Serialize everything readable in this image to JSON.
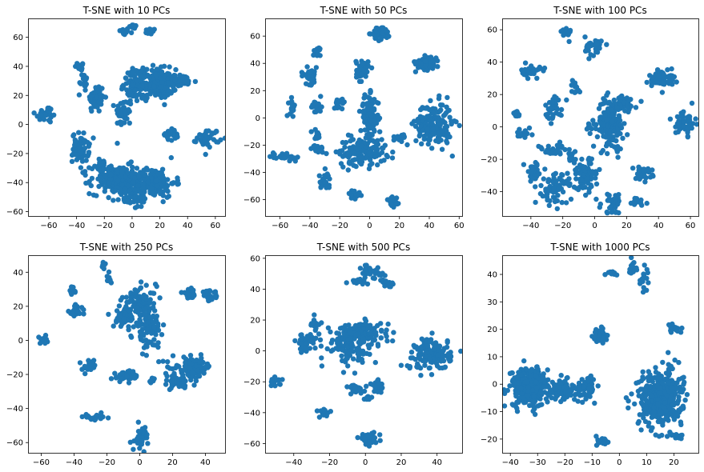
{
  "figure": {
    "background": "#ffffff"
  },
  "chart_data": [
    {
      "type": "scatter",
      "title": "T-SNE with 10 PCs",
      "xlim": [
        -75,
        67
      ],
      "ylim": [
        -63,
        73
      ],
      "xticks": [
        -60,
        -40,
        -20,
        0,
        20,
        40,
        60
      ],
      "yticks": [
        -60,
        -40,
        -20,
        0,
        20,
        40,
        60
      ],
      "color": "#1f77b4",
      "clusters": [
        {
          "cx": -6,
          "cy": 64,
          "sx": 2,
          "sy": 1.2,
          "n": 20
        },
        {
          "cx": 1,
          "cy": 67,
          "sx": 1.5,
          "sy": 1,
          "n": 12
        },
        {
          "cx": 13,
          "cy": 64,
          "sx": 2,
          "sy": 1,
          "n": 14
        },
        {
          "cx": -37,
          "cy": 40,
          "sx": 2,
          "sy": 1.5,
          "n": 18
        },
        {
          "cx": -35,
          "cy": 30,
          "sx": 1.5,
          "sy": 3,
          "n": 14
        },
        {
          "cx": -26,
          "cy": 18,
          "sx": 3,
          "sy": 5,
          "n": 55
        },
        {
          "cx": -62,
          "cy": 7,
          "sx": 4,
          "sy": 3,
          "n": 30
        },
        {
          "cx": -6,
          "cy": 8,
          "sx": 3,
          "sy": 5,
          "n": 40
        },
        {
          "cx": 16,
          "cy": 28,
          "sx": 8,
          "sy": 5,
          "n": 200
        },
        {
          "cx": 2,
          "cy": 28,
          "sx": 4,
          "sy": 5,
          "n": 60
        },
        {
          "cx": 35,
          "cy": 30,
          "sx": 6,
          "sy": 2,
          "n": 40
        },
        {
          "cx": -37,
          "cy": -16,
          "sx": 3,
          "sy": 5,
          "n": 70
        },
        {
          "cx": 28,
          "cy": -7,
          "sx": 3,
          "sy": 2,
          "n": 25
        },
        {
          "cx": 55,
          "cy": -9,
          "sx": 4,
          "sy": 3,
          "n": 40
        },
        {
          "cx": -10,
          "cy": -38,
          "sx": 10,
          "sy": 5,
          "n": 200
        },
        {
          "cx": 15,
          "cy": -40,
          "sx": 8,
          "sy": 5,
          "n": 150
        },
        {
          "cx": 0,
          "cy": -50,
          "sx": 6,
          "sy": 4,
          "n": 60
        },
        {
          "cx": -22,
          "cy": -28,
          "sx": 3,
          "sy": 2,
          "n": 20
        }
      ]
    },
    {
      "type": "scatter",
      "title": "T-SNE with 50 PCs",
      "xlim": [
        -70,
        62
      ],
      "ylim": [
        -72,
        73
      ],
      "xticks": [
        -60,
        -40,
        -20,
        0,
        20,
        40,
        60
      ],
      "yticks": [
        -60,
        -40,
        -20,
        0,
        20,
        40,
        60
      ],
      "color": "#1f77b4",
      "clusters": [
        {
          "cx": 8,
          "cy": 62,
          "sx": 3,
          "sy": 2.5,
          "n": 45
        },
        {
          "cx": -35,
          "cy": 48,
          "sx": 1.5,
          "sy": 2,
          "n": 15
        },
        {
          "cx": 39,
          "cy": 41,
          "sx": 4,
          "sy": 3,
          "n": 50
        },
        {
          "cx": -40,
          "cy": 31,
          "sx": 3,
          "sy": 3,
          "n": 35
        },
        {
          "cx": -5,
          "cy": 35,
          "sx": 2,
          "sy": 4,
          "n": 45
        },
        {
          "cx": -52,
          "cy": 8,
          "sx": 1,
          "sy": 3,
          "n": 15
        },
        {
          "cx": -35,
          "cy": 8,
          "sx": 2,
          "sy": 3,
          "n": 20
        },
        {
          "cx": -20,
          "cy": 12,
          "sx": 2,
          "sy": 2,
          "n": 15
        },
        {
          "cx": 0,
          "cy": 0,
          "sx": 3,
          "sy": 8,
          "n": 100
        },
        {
          "cx": 43,
          "cy": -5,
          "sx": 6,
          "sy": 8,
          "n": 180
        },
        {
          "cx": -5,
          "cy": -25,
          "sx": 8,
          "sy": 5,
          "n": 140
        },
        {
          "cx": -57,
          "cy": -28,
          "sx": 5,
          "sy": 1.5,
          "n": 30
        },
        {
          "cx": -35,
          "cy": -23,
          "sx": 2,
          "sy": 1.5,
          "n": 15
        },
        {
          "cx": -36,
          "cy": -12,
          "sx": 1.5,
          "sy": 2,
          "n": 12
        },
        {
          "cx": -30,
          "cy": -46,
          "sx": 2,
          "sy": 3,
          "n": 25
        },
        {
          "cx": -10,
          "cy": -56,
          "sx": 2,
          "sy": 1.5,
          "n": 15
        },
        {
          "cx": 16,
          "cy": -62,
          "sx": 2,
          "sy": 3,
          "n": 25
        },
        {
          "cx": 20,
          "cy": -15,
          "sx": 3,
          "sy": 2,
          "n": 15
        }
      ]
    },
    {
      "type": "scatter",
      "title": "T-SNE with 100 PCs",
      "xlim": [
        -58,
        65
      ],
      "ylim": [
        -55,
        67
      ],
      "xticks": [
        -60,
        -40,
        -20,
        0,
        20,
        40,
        60
      ],
      "yticks": [
        -40,
        -20,
        0,
        20,
        40,
        60
      ],
      "color": "#1f77b4",
      "clusters": [
        {
          "cx": -18,
          "cy": 58,
          "sx": 1.5,
          "sy": 2,
          "n": 15
        },
        {
          "cx": 0,
          "cy": 50,
          "sx": 3,
          "sy": 3,
          "n": 35
        },
        {
          "cx": -40,
          "cy": 34,
          "sx": 3,
          "sy": 2,
          "n": 30
        },
        {
          "cx": 42,
          "cy": 30,
          "sx": 4,
          "sy": 3,
          "n": 55
        },
        {
          "cx": -25,
          "cy": 12,
          "sx": 3,
          "sy": 4,
          "n": 35
        },
        {
          "cx": -12,
          "cy": 25,
          "sx": 1.5,
          "sy": 2,
          "n": 12
        },
        {
          "cx": 18,
          "cy": 14,
          "sx": 4,
          "sy": 3,
          "n": 40
        },
        {
          "cx": -50,
          "cy": 8,
          "sx": 2,
          "sy": 1,
          "n": 15
        },
        {
          "cx": 10,
          "cy": 2,
          "sx": 4,
          "sy": 8,
          "n": 160
        },
        {
          "cx": 57,
          "cy": 3,
          "sx": 3,
          "sy": 4,
          "n": 50
        },
        {
          "cx": -2,
          "cy": 1,
          "sx": 1.5,
          "sy": 2,
          "n": 12
        },
        {
          "cx": -45,
          "cy": -4,
          "sx": 3,
          "sy": 1.5,
          "n": 15
        },
        {
          "cx": -26,
          "cy": -15,
          "sx": 6,
          "sy": 2,
          "n": 30
        },
        {
          "cx": -15,
          "cy": -19,
          "sx": 2,
          "sy": 2,
          "n": 15
        },
        {
          "cx": -38,
          "cy": -28,
          "sx": 3,
          "sy": 3,
          "n": 35
        },
        {
          "cx": -25,
          "cy": -38,
          "sx": 4,
          "sy": 5,
          "n": 70
        },
        {
          "cx": -6,
          "cy": -30,
          "sx": 4,
          "sy": 5,
          "n": 90
        },
        {
          "cx": 30,
          "cy": -29,
          "sx": 3,
          "sy": 2,
          "n": 30
        },
        {
          "cx": 12,
          "cy": -47,
          "sx": 4,
          "sy": 3,
          "n": 30
        },
        {
          "cx": 26,
          "cy": -46,
          "sx": 3,
          "sy": 2,
          "n": 20
        }
      ]
    },
    {
      "type": "scatter",
      "title": "T-SNE with 250 PCs",
      "xlim": [
        -68,
        52
      ],
      "ylim": [
        -66,
        50
      ],
      "xticks": [
        -60,
        -40,
        -20,
        0,
        20,
        40
      ],
      "yticks": [
        -60,
        -40,
        -20,
        0,
        20,
        40
      ],
      "color": "#1f77b4",
      "clusters": [
        {
          "cx": -22,
          "cy": 44,
          "sx": 1,
          "sy": 1.5,
          "n": 10
        },
        {
          "cx": -19,
          "cy": 35,
          "sx": 1,
          "sy": 2,
          "n": 10
        },
        {
          "cx": -41,
          "cy": 29,
          "sx": 1.5,
          "sy": 1.5,
          "n": 12
        },
        {
          "cx": -39,
          "cy": 17,
          "sx": 2,
          "sy": 2,
          "n": 25
        },
        {
          "cx": 0,
          "cy": 24,
          "sx": 5,
          "sy": 4,
          "n": 60
        },
        {
          "cx": -8,
          "cy": 15,
          "sx": 3,
          "sy": 4,
          "n": 30
        },
        {
          "cx": 5,
          "cy": 8,
          "sx": 4,
          "sy": 6,
          "n": 100
        },
        {
          "cx": -10,
          "cy": 12,
          "sx": 3,
          "sy": 2,
          "n": 25
        },
        {
          "cx": 30,
          "cy": 27,
          "sx": 2,
          "sy": 1.5,
          "n": 20
        },
        {
          "cx": 43,
          "cy": 26,
          "sx": 3,
          "sy": 1.5,
          "n": 25
        },
        {
          "cx": -58,
          "cy": 0,
          "sx": 2,
          "sy": 1,
          "n": 15
        },
        {
          "cx": -31,
          "cy": -15,
          "sx": 2,
          "sy": 2,
          "n": 25
        },
        {
          "cx": -8,
          "cy": -21,
          "sx": 4,
          "sy": 1.5,
          "n": 40
        },
        {
          "cx": 8,
          "cy": -24,
          "sx": 1,
          "sy": 1,
          "n": 6
        },
        {
          "cx": 32,
          "cy": -16,
          "sx": 6,
          "sy": 3,
          "n": 100
        },
        {
          "cx": 22,
          "cy": -25,
          "sx": 4,
          "sy": 2,
          "n": 40
        },
        {
          "cx": -27,
          "cy": -45,
          "sx": 3,
          "sy": 1,
          "n": 20
        },
        {
          "cx": 1,
          "cy": -57,
          "sx": 2,
          "sy": 3,
          "n": 35
        }
      ]
    },
    {
      "type": "scatter",
      "title": "T-SNE with 500 PCs",
      "xlim": [
        -56,
        54
      ],
      "ylim": [
        -66,
        62
      ],
      "xticks": [
        -40,
        -20,
        0,
        20,
        40
      ],
      "yticks": [
        -60,
        -40,
        -20,
        0,
        20,
        40,
        60
      ],
      "color": "#1f77b4",
      "clusters": [
        {
          "cx": 4,
          "cy": 50,
          "sx": 3,
          "sy": 3,
          "n": 30
        },
        {
          "cx": -5,
          "cy": 45,
          "sx": 2,
          "sy": 1,
          "n": 12
        },
        {
          "cx": 12,
          "cy": 44,
          "sx": 2,
          "sy": 1,
          "n": 10
        },
        {
          "cx": -28,
          "cy": 18,
          "sx": 2,
          "sy": 2,
          "n": 15
        },
        {
          "cx": -33,
          "cy": 5,
          "sx": 3,
          "sy": 4,
          "n": 35
        },
        {
          "cx": -10,
          "cy": 5,
          "sx": 6,
          "sy": 6,
          "n": 110
        },
        {
          "cx": 0,
          "cy": 11,
          "sx": 6,
          "sy": 4,
          "n": 100
        },
        {
          "cx": 38,
          "cy": -2,
          "sx": 5,
          "sy": 5,
          "n": 150
        },
        {
          "cx": 26,
          "cy": -10,
          "sx": 1.5,
          "sy": 1,
          "n": 8
        },
        {
          "cx": -50,
          "cy": -20,
          "sx": 2,
          "sy": 1.5,
          "n": 15
        },
        {
          "cx": -5,
          "cy": -25,
          "sx": 3,
          "sy": 1.5,
          "n": 25
        },
        {
          "cx": 7,
          "cy": -23,
          "sx": 2,
          "sy": 2,
          "n": 25
        },
        {
          "cx": 2,
          "cy": -30,
          "sx": 1,
          "sy": 1,
          "n": 8
        },
        {
          "cx": -23,
          "cy": -40,
          "sx": 2,
          "sy": 1.5,
          "n": 15
        },
        {
          "cx": 2,
          "cy": -57,
          "sx": 3,
          "sy": 2,
          "n": 30
        }
      ]
    },
    {
      "type": "scatter",
      "title": "T-SNE with 1000 PCs",
      "xlim": [
        -43,
        29
      ],
      "ylim": [
        -25,
        47
      ],
      "xticks": [
        -40,
        -30,
        -20,
        -10,
        0,
        10,
        20
      ],
      "yticks": [
        -20,
        -10,
        0,
        10,
        20,
        30,
        40
      ],
      "color": "#1f77b4",
      "clusters": [
        {
          "cx": 5,
          "cy": 42,
          "sx": 1,
          "sy": 1.5,
          "n": 12
        },
        {
          "cx": 9,
          "cy": 38,
          "sx": 1,
          "sy": 2.5,
          "n": 15
        },
        {
          "cx": -3,
          "cy": 40,
          "sx": 1,
          "sy": 0.7,
          "n": 8
        },
        {
          "cx": -7,
          "cy": 18,
          "sx": 1.3,
          "sy": 1.2,
          "n": 35
        },
        {
          "cx": 20,
          "cy": 20,
          "sx": 1,
          "sy": 0.8,
          "n": 20
        },
        {
          "cx": -33,
          "cy": -1,
          "sx": 3.5,
          "sy": 3.5,
          "n": 300
        },
        {
          "cx": -21,
          "cy": -2,
          "sx": 2.5,
          "sy": 1.7,
          "n": 80
        },
        {
          "cx": -12,
          "cy": -1,
          "sx": 1.8,
          "sy": 2,
          "n": 60
        },
        {
          "cx": 15,
          "cy": -5,
          "sx": 4,
          "sy": 5,
          "n": 400
        },
        {
          "cx": 21,
          "cy": -19,
          "sx": 1,
          "sy": 0.6,
          "n": 12
        },
        {
          "cx": -6,
          "cy": -21,
          "sx": 1,
          "sy": 1,
          "n": 20
        }
      ]
    }
  ]
}
